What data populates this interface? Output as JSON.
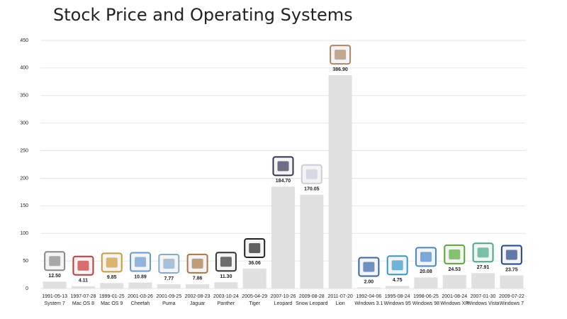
{
  "chart_data": {
    "type": "bar",
    "title": "Stock Price and Operating Systems",
    "categories": [
      "1991-05-13",
      "1997-07-28",
      "1999-01-25",
      "2001-03-26",
      "2001-09-25",
      "2002-08-23",
      "2003-10-24",
      "2005-04-29",
      "2007-10-26",
      "2009-08-28",
      "2011-07-20",
      "1992-04-06",
      "1995-08-24",
      "1998-06-25",
      "2001-08-24",
      "2007-01-30",
      "2009-07-22"
    ],
    "names": [
      "System 7",
      "Mac OS 8",
      "Mac OS 9",
      "Cheetah",
      "Puma",
      "Jaguar",
      "Panther",
      "Tiger",
      "Leopard",
      "Snow Leopard",
      "Lion",
      "Windows 3.1",
      "Windows 95",
      "Windows 98",
      "Windows XP",
      "Windows Vista",
      "Windows 7"
    ],
    "values": [
      12.5,
      4.11,
      9.85,
      10.89,
      7.77,
      7.86,
      11.3,
      36.06,
      184.7,
      170.05,
      386.9,
      2.0,
      4.75,
      20.08,
      24.53,
      27.91,
      23.75
    ],
    "value_labels": [
      "12.50",
      "4.11",
      "9.85",
      "10.89",
      "7.77",
      "7.86",
      "11.30",
      "36.06",
      "184.70",
      "170.05",
      "386.90",
      "2.00",
      "4.75",
      "20.08",
      "24.53",
      "27.91",
      "23.75"
    ],
    "color": "#e0e0e0",
    "ylim": [
      0,
      450
    ],
    "yticks": [
      0,
      50,
      100,
      150,
      200,
      250,
      300,
      350,
      400,
      450
    ],
    "grid": true
  }
}
